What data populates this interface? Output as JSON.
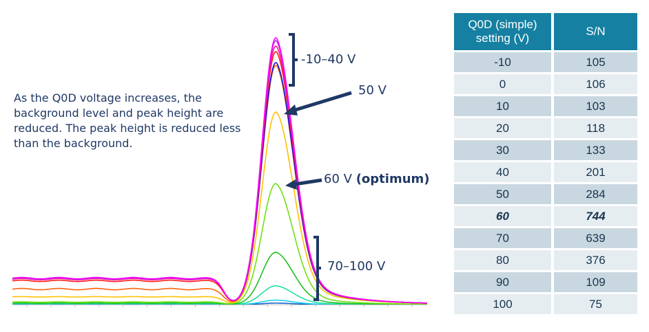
{
  "note": "As the Q0D voltage increases, the background level and peak height are reduced. The peak height is reduced less than the background.",
  "labels": {
    "group_high": "-10–40 V",
    "v50": "50 V",
    "v60": "60 V",
    "v60_bold": "(optimum)",
    "group_low": "70–100 V"
  },
  "table": {
    "headers": [
      "Q0D (simple) setting (V)",
      "S/N"
    ],
    "rows": [
      [
        "-10",
        "105"
      ],
      [
        "0",
        "106"
      ],
      [
        "10",
        "103"
      ],
      [
        "20",
        "118"
      ],
      [
        "30",
        "133"
      ],
      [
        "40",
        "201"
      ],
      [
        "50",
        "284"
      ],
      [
        "60",
        "744"
      ],
      [
        "70",
        "639"
      ],
      [
        "80",
        "376"
      ],
      [
        "90",
        "109"
      ],
      [
        "100",
        "75"
      ]
    ],
    "highlight_row": 7,
    "header_color": "#1580a2"
  },
  "chart_data": {
    "type": "line",
    "title": "",
    "xlabel": "",
    "ylabel": "",
    "grid": false,
    "legend": "none",
    "series": [
      {
        "setting": "-10",
        "color": "#ff00ff",
        "peak": 97,
        "baseline": 9.6
      },
      {
        "setting": "0",
        "color": "#b030e0",
        "peak": 96,
        "baseline": 9.4
      },
      {
        "setting": "10",
        "color": "#ff1090",
        "peak": 94,
        "baseline": 9.2
      },
      {
        "setting": "20",
        "color": "#ff1818",
        "peak": 92,
        "baseline": 8.6
      },
      {
        "setting": "30",
        "color": "#1010e0",
        "peak": 88,
        "baseline": 9.3
      },
      {
        "setting": "40",
        "color": "#ff6010",
        "peak": 87,
        "baseline": 5.6
      },
      {
        "setting": "50",
        "color": "#ffc000",
        "peak": 70,
        "baseline": 2.8
      },
      {
        "setting": "60",
        "color": "#70e010",
        "peak": 44,
        "baseline": 0.9
      },
      {
        "setting": "70",
        "color": "#20c020",
        "peak": 19,
        "baseline": 0.5
      },
      {
        "setting": "80",
        "color": "#20e0a0",
        "peak": 6.8,
        "baseline": 0.3
      },
      {
        "setting": "90",
        "color": "#20d0f0",
        "peak": 1.6,
        "baseline": 0.2
      },
      {
        "setting": "100",
        "color": "#1060d0",
        "peak": 0.5,
        "baseline": 0.1
      }
    ],
    "peak_x": 63.5,
    "xlim": [
      0,
      100
    ],
    "ylim": [
      0,
      100
    ]
  }
}
